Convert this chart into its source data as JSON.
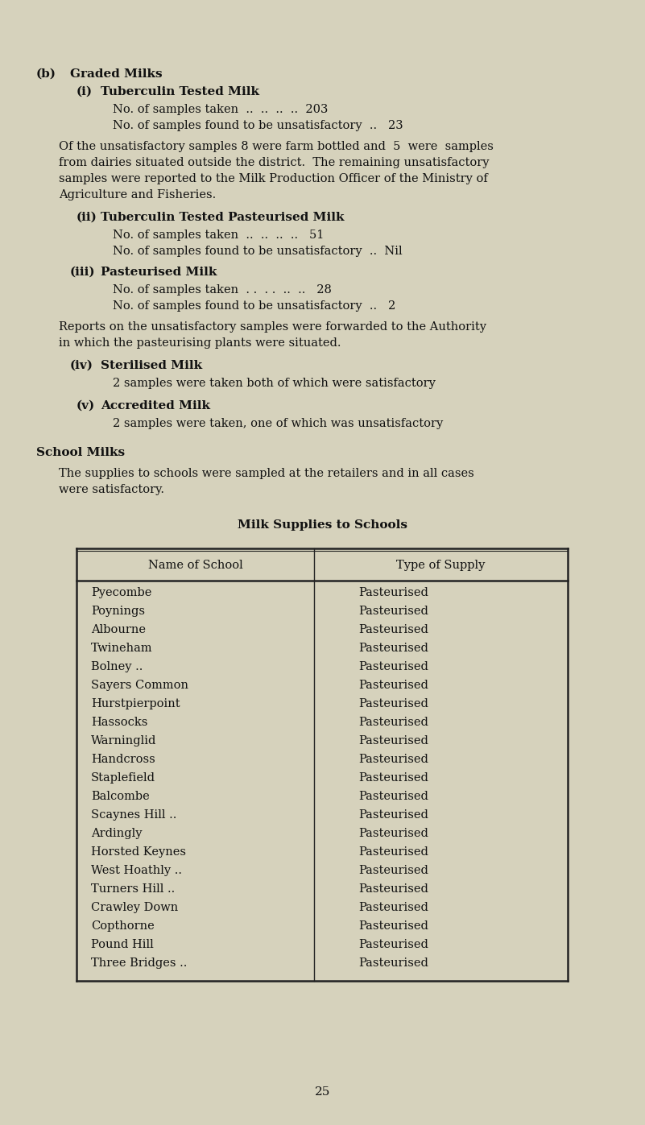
{
  "bg_color": "#d6d2bc",
  "text_color": "#1a1a1a",
  "page_number": "25",
  "schools": [
    [
      "Pyecombe",
      "Pasteurised"
    ],
    [
      "Poynings",
      "Pasteurised"
    ],
    [
      "Albourne",
      "Pasteurised"
    ],
    [
      "Twineham",
      "Pasteurised"
    ],
    [
      "Bolney ..",
      "Pasteurised"
    ],
    [
      "Sayers Common",
      "Pasteurised"
    ],
    [
      "Hurstpierpoint",
      "Pasteurised"
    ],
    [
      "Hassocks",
      "Pasteurised"
    ],
    [
      "Warninglid",
      "Pasteurised"
    ],
    [
      "Handcross",
      "Pasteurised"
    ],
    [
      "Staplefield",
      "Pasteurised"
    ],
    [
      "Balcombe",
      "Pasteurised"
    ],
    [
      "Scaynes Hill ..",
      "Pasteurised"
    ],
    [
      "Ardingly",
      "Pasteurised"
    ],
    [
      "Horsted Keynes",
      "Pasteurised"
    ],
    [
      "West Hoathly ..",
      "Pasteurised"
    ],
    [
      "Turners Hill ..",
      "Pasteurised"
    ],
    [
      "Crawley Down",
      "Pasteurised"
    ],
    [
      "Copthorne",
      "Pasteurised"
    ],
    [
      "Pound Hill",
      "Pasteurised"
    ],
    [
      "Three Bridges ..",
      "Pasteurised"
    ]
  ],
  "table_col1_header": "Name of School",
  "table_col2_header": "Type of Supply"
}
